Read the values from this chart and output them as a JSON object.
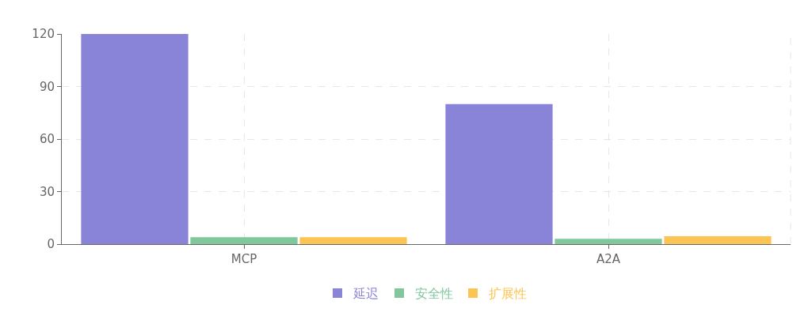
{
  "chart_data": {
    "type": "bar",
    "categories": [
      "MCP",
      "A2A"
    ],
    "series": [
      {
        "name": "延迟",
        "color": "#8a84d8",
        "values": [
          120,
          80
        ]
      },
      {
        "name": "安全性",
        "color": "#80c79c",
        "values": [
          4,
          3
        ]
      },
      {
        "name": "扩展性",
        "color": "#fcc452",
        "values": [
          4,
          4.5
        ]
      }
    ],
    "ylim": [
      0,
      120
    ],
    "yticks": [
      0,
      30,
      60,
      90,
      120
    ],
    "grid": true,
    "legend": "bottom"
  }
}
